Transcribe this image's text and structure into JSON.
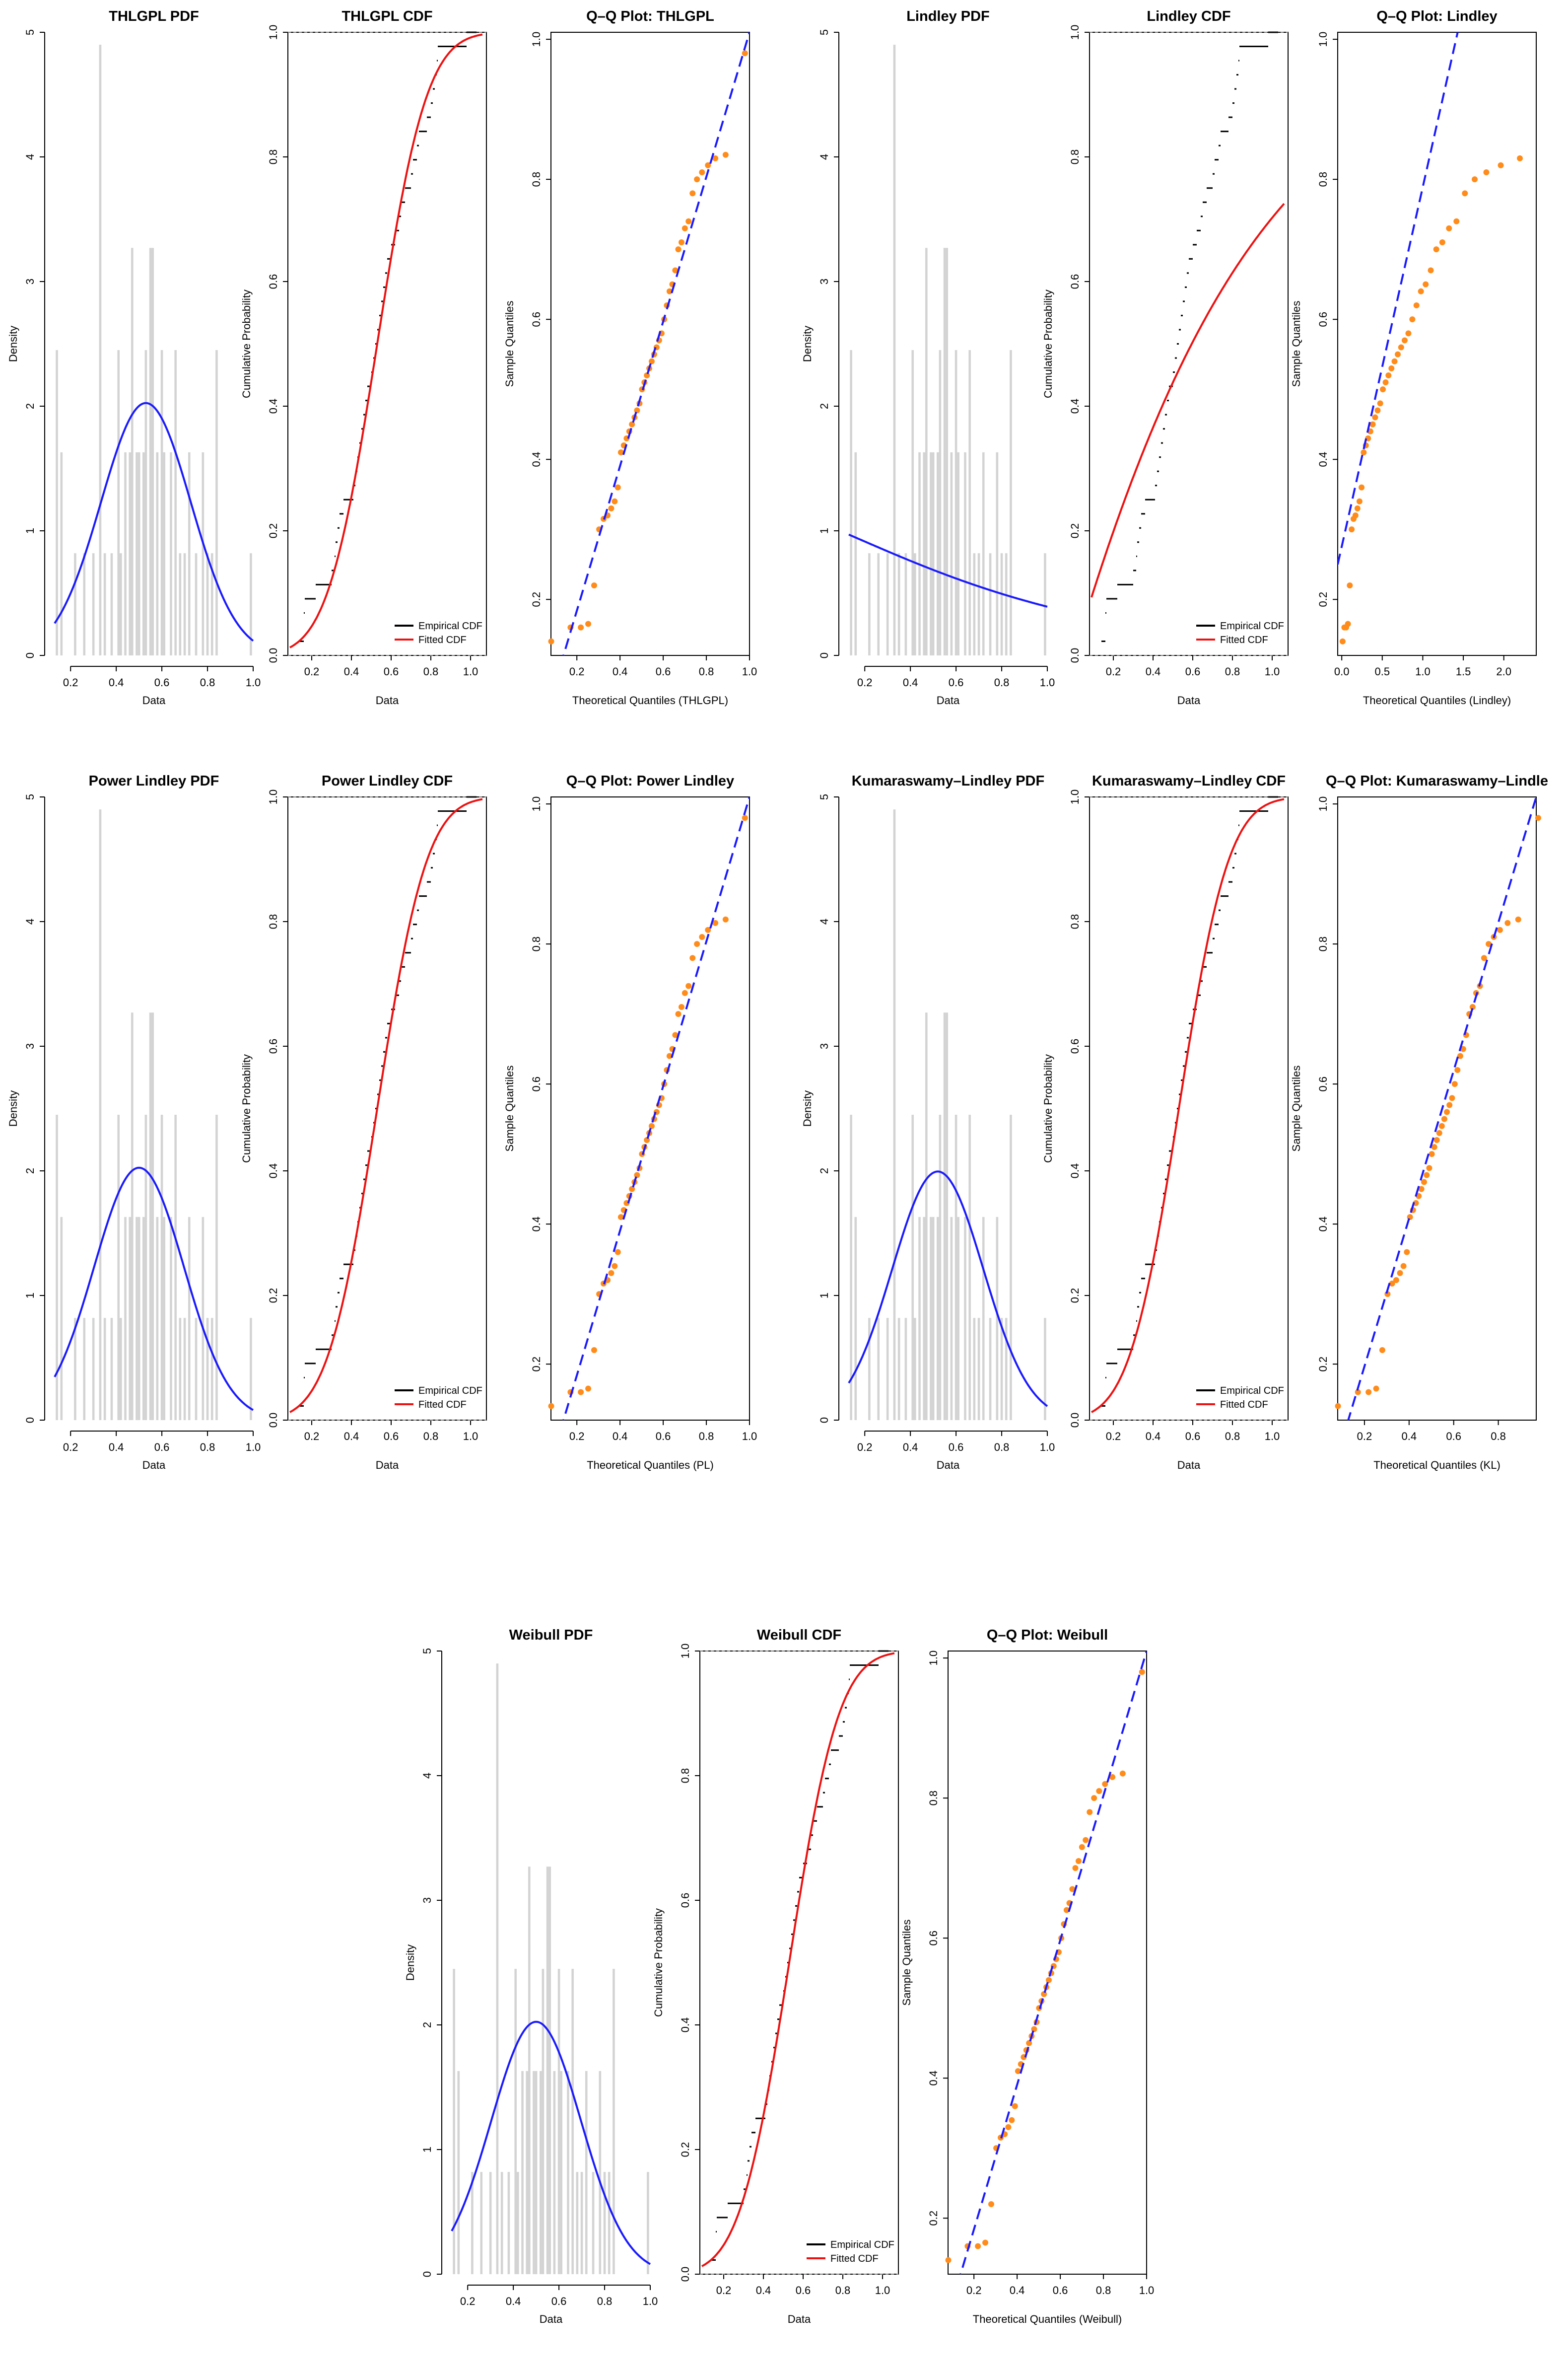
{
  "colors": {
    "pdf_curve": "#1a1aff",
    "cdf_fitted": "#ee1111",
    "qq_points": "#ff8c1a",
    "qq_line": "#1a1aff",
    "hist_bars": "#d3d3d3",
    "empirical": "#000000"
  },
  "histogram": {
    "bars": [
      {
        "x": 0.14,
        "h": 2.45
      },
      {
        "x": 0.16,
        "h": 1.63
      },
      {
        "x": 0.22,
        "h": 0.82
      },
      {
        "x": 0.26,
        "h": 0.82
      },
      {
        "x": 0.3,
        "h": 0.82
      },
      {
        "x": 0.33,
        "h": 4.9
      },
      {
        "x": 0.35,
        "h": 0.82
      },
      {
        "x": 0.38,
        "h": 0.82
      },
      {
        "x": 0.41,
        "h": 2.45
      },
      {
        "x": 0.42,
        "h": 0.82
      },
      {
        "x": 0.44,
        "h": 1.63
      },
      {
        "x": 0.46,
        "h": 1.63
      },
      {
        "x": 0.47,
        "h": 3.27
      },
      {
        "x": 0.49,
        "h": 1.63
      },
      {
        "x": 0.5,
        "h": 1.63
      },
      {
        "x": 0.52,
        "h": 1.63
      },
      {
        "x": 0.53,
        "h": 2.45
      },
      {
        "x": 0.55,
        "h": 3.27
      },
      {
        "x": 0.56,
        "h": 3.27
      },
      {
        "x": 0.58,
        "h": 1.63
      },
      {
        "x": 0.6,
        "h": 2.45
      },
      {
        "x": 0.61,
        "h": 1.63
      },
      {
        "x": 0.64,
        "h": 1.63
      },
      {
        "x": 0.66,
        "h": 2.45
      },
      {
        "x": 0.68,
        "h": 0.82
      },
      {
        "x": 0.7,
        "h": 0.82
      },
      {
        "x": 0.72,
        "h": 1.63
      },
      {
        "x": 0.75,
        "h": 0.82
      },
      {
        "x": 0.78,
        "h": 1.63
      },
      {
        "x": 0.8,
        "h": 0.82
      },
      {
        "x": 0.82,
        "h": 0.82
      },
      {
        "x": 0.84,
        "h": 2.45
      },
      {
        "x": 0.99,
        "h": 0.82
      }
    ]
  },
  "chart_data": [
    {
      "id": "thlgpl_pdf",
      "type": "histogram+line",
      "title": "THLGPL PDF",
      "xlabel": "Data",
      "ylabel": "Density",
      "xlim": [
        0.13,
        1.0
      ],
      "ylim": [
        0,
        5
      ],
      "xticks": [
        "0.2",
        "0.4",
        "0.6",
        "0.8",
        "1.0"
      ],
      "yticks": [
        "0",
        "1",
        "2",
        "3",
        "4",
        "5"
      ],
      "curve": {
        "type": "normal",
        "mean": 0.53,
        "sd": 0.197
      }
    },
    {
      "id": "thlgpl_cdf",
      "type": "cdf",
      "title": "THLGPL CDF",
      "xlabel": "Data",
      "ylabel": "Cumulative Probability",
      "xlim": [
        0.08,
        1.08
      ],
      "ylim": [
        0,
        1
      ],
      "xticks": [
        "0.2",
        "0.4",
        "0.6",
        "0.8",
        "1.0"
      ],
      "yticks": [
        "0.0",
        "0.2",
        "0.4",
        "0.6",
        "0.8",
        "1.0"
      ],
      "legend": [
        "Empirical CDF",
        "Fitted CDF"
      ],
      "fitted": {
        "type": "normal",
        "mean": 0.53,
        "sd": 0.197
      }
    },
    {
      "id": "thlgpl_qq",
      "type": "qq",
      "title": "Q–Q Plot: THLGPL",
      "xlabel": "Theoretical Quantiles (THLGPL)",
      "ylabel": "Sample Quantiles",
      "xlim": [
        0.08,
        1.0
      ],
      "ylim": [
        0.12,
        1.01
      ],
      "xticks": [
        "0.2",
        "0.4",
        "0.6",
        "0.8",
        "1.0"
      ],
      "yticks": [
        "0.2",
        "0.4",
        "0.6",
        "0.8",
        "1.0"
      ],
      "theory": "normal",
      "line": [
        [
          0.08,
          0.06
        ],
        [
          1.0,
          1.01
        ]
      ]
    },
    {
      "id": "lindley_pdf",
      "type": "histogram+line",
      "title": "Lindley PDF",
      "xlabel": "Data",
      "ylabel": "Density",
      "xlim": [
        0.13,
        1.0
      ],
      "ylim": [
        0,
        5
      ],
      "xticks": [
        "0.2",
        "0.4",
        "0.6",
        "0.8",
        "1.0"
      ],
      "yticks": [
        "0",
        "1",
        "2",
        "3",
        "4",
        "5"
      ],
      "curve": {
        "type": "lindley",
        "theta": 1.7
      }
    },
    {
      "id": "lindley_cdf",
      "type": "cdf",
      "title": "Lindley CDF",
      "xlabel": "Data",
      "ylabel": "Cumulative Probability",
      "xlim": [
        0.08,
        1.08
      ],
      "ylim": [
        0,
        1
      ],
      "xticks": [
        "0.2",
        "0.4",
        "0.6",
        "0.8",
        "1.0"
      ],
      "yticks": [
        "0.0",
        "0.2",
        "0.4",
        "0.6",
        "0.8",
        "1.0"
      ],
      "legend": [
        "Empirical CDF",
        "Fitted CDF"
      ],
      "fitted": {
        "type": "lindley",
        "theta": 1.7
      }
    },
    {
      "id": "lindley_qq",
      "type": "qq",
      "title": "Q–Q Plot: Lindley",
      "xlabel": "Theoretical Quantiles (Lindley)",
      "ylabel": "Sample Quantiles",
      "xlim": [
        -0.05,
        2.4
      ],
      "ylim": [
        0.12,
        1.01
      ],
      "xticks": [
        "0.0",
        "0.5",
        "1.0",
        "1.5",
        "2.0"
      ],
      "yticks": [
        "0.2",
        "0.4",
        "0.6",
        "0.8",
        "1.0"
      ],
      "theory": "lindley",
      "line": [
        [
          -0.05,
          0.25
        ],
        [
          1.45,
          1.02
        ]
      ]
    },
    {
      "id": "pl_pdf",
      "type": "histogram+line",
      "title": "Power Lindley PDF",
      "xlabel": "Data",
      "ylabel": "Density",
      "xlim": [
        0.13,
        1.0
      ],
      "ylim": [
        0,
        5
      ],
      "xticks": [
        "0.2",
        "0.4",
        "0.6",
        "0.8",
        "1.0"
      ],
      "yticks": [
        "0",
        "1",
        "2",
        "3",
        "4",
        "5"
      ],
      "curve": {
        "type": "normal",
        "mean": 0.5,
        "sd": 0.197
      }
    },
    {
      "id": "pl_cdf",
      "type": "cdf",
      "title": "Power Lindley CDF",
      "xlabel": "Data",
      "ylabel": "Cumulative Probability",
      "xlim": [
        0.08,
        1.08
      ],
      "ylim": [
        0,
        1
      ],
      "xticks": [
        "0.2",
        "0.4",
        "0.6",
        "0.8",
        "1.0"
      ],
      "yticks": [
        "0.0",
        "0.2",
        "0.4",
        "0.6",
        "0.8",
        "1.0"
      ],
      "legend": [
        "Empirical CDF",
        "Fitted CDF"
      ],
      "fitted": {
        "type": "normal",
        "mean": 0.53,
        "sd": 0.197
      }
    },
    {
      "id": "pl_qq",
      "type": "qq",
      "title": "Q–Q Plot: Power Lindley",
      "xlabel": "Theoretical Quantiles (PL)",
      "ylabel": "Sample Quantiles",
      "xlim": [
        0.08,
        1.0
      ],
      "ylim": [
        0.12,
        1.01
      ],
      "xticks": [
        "0.2",
        "0.4",
        "0.6",
        "0.8",
        "1.0"
      ],
      "yticks": [
        "0.2",
        "0.4",
        "0.6",
        "0.8",
        "1.0"
      ],
      "theory": "normal",
      "line": [
        [
          0.08,
          0.06
        ],
        [
          1.0,
          1.01
        ]
      ]
    },
    {
      "id": "kl_pdf",
      "type": "histogram+line",
      "title": "Kumaraswamy–Lindley PDF",
      "xlabel": "Data",
      "ylabel": "Density",
      "xlim": [
        0.13,
        1.0
      ],
      "ylim": [
        0,
        5
      ],
      "xticks": [
        "0.2",
        "0.4",
        "0.6",
        "0.8",
        "1.0"
      ],
      "yticks": [
        "0",
        "1",
        "2",
        "3",
        "4",
        "5"
      ],
      "curve": {
        "type": "normal",
        "mean": 0.52,
        "sd": 0.2
      }
    },
    {
      "id": "kl_cdf",
      "type": "cdf",
      "title": "Kumaraswamy–Lindley CDF",
      "xlabel": "Data",
      "ylabel": "Cumulative Probability",
      "xlim": [
        0.08,
        1.08
      ],
      "ylim": [
        0,
        1
      ],
      "xticks": [
        "0.2",
        "0.4",
        "0.6",
        "0.8",
        "1.0"
      ],
      "yticks": [
        "0.0",
        "0.2",
        "0.4",
        "0.6",
        "0.8",
        "1.0"
      ],
      "legend": [
        "Empirical CDF",
        "Fitted CDF"
      ],
      "fitted": {
        "type": "normal",
        "mean": 0.53,
        "sd": 0.197
      }
    },
    {
      "id": "kl_qq",
      "type": "qq",
      "title": "Q–Q Plot: Kumaraswamy–Lindle",
      "xlabel": "Theoretical Quantiles (KL)",
      "ylabel": "Sample Quantiles",
      "xlim": [
        0.08,
        0.97
      ],
      "ylim": [
        0.12,
        1.01
      ],
      "xticks": [
        "0.2",
        "0.4",
        "0.6",
        "0.8"
      ],
      "yticks": [
        "0.2",
        "0.4",
        "0.6",
        "0.8",
        "1.0"
      ],
      "theory": "normal",
      "line": [
        [
          0.08,
          0.07
        ],
        [
          0.97,
          1.01
        ]
      ]
    },
    {
      "id": "weibull_pdf",
      "type": "histogram+line",
      "title": "Weibull PDF",
      "xlabel": "Data",
      "ylabel": "Density",
      "xlim": [
        0.13,
        1.0
      ],
      "ylim": [
        0,
        5
      ],
      "xticks": [
        "0.2",
        "0.4",
        "0.6",
        "0.8",
        "1.0"
      ],
      "yticks": [
        "0",
        "1",
        "2",
        "3",
        "4",
        "5"
      ],
      "curve": {
        "type": "normal",
        "mean": 0.5,
        "sd": 0.197
      }
    },
    {
      "id": "weibull_cdf",
      "type": "cdf",
      "title": "Weibull CDF",
      "xlabel": "Data",
      "ylabel": "Cumulative Probability",
      "xlim": [
        0.08,
        1.08
      ],
      "ylim": [
        0,
        1
      ],
      "xticks": [
        "0.2",
        "0.4",
        "0.6",
        "0.8",
        "1.0"
      ],
      "yticks": [
        "0.0",
        "0.2",
        "0.4",
        "0.6",
        "0.8",
        "1.0"
      ],
      "legend": [
        "Empirical CDF",
        "Fitted CDF"
      ],
      "fitted": {
        "type": "normal",
        "mean": 0.53,
        "sd": 0.197
      }
    },
    {
      "id": "weibull_qq",
      "type": "qq",
      "title": "Q–Q Plot: Weibull",
      "xlabel": "Theoretical Quantiles (Weibull)",
      "ylabel": "Sample Quantiles",
      "xlim": [
        0.08,
        1.0
      ],
      "ylim": [
        0.12,
        1.01
      ],
      "xticks": [
        "0.2",
        "0.4",
        "0.6",
        "0.8",
        "1.0"
      ],
      "yticks": [
        "0.2",
        "0.4",
        "0.6",
        "0.8",
        "1.0"
      ],
      "theory": "normal",
      "line": [
        [
          0.08,
          0.06
        ],
        [
          1.0,
          1.01
        ]
      ]
    }
  ],
  "sample": [
    0.14,
    0.16,
    0.16,
    0.165,
    0.22,
    0.3,
    0.315,
    0.32,
    0.33,
    0.34,
    0.36,
    0.41,
    0.42,
    0.43,
    0.44,
    0.45,
    0.46,
    0.47,
    0.48,
    0.5,
    0.51,
    0.52,
    0.53,
    0.54,
    0.55,
    0.56,
    0.57,
    0.58,
    0.6,
    0.62,
    0.64,
    0.65,
    0.67,
    0.7,
    0.71,
    0.73,
    0.74,
    0.78,
    0.8,
    0.81,
    0.82,
    0.83,
    0.835,
    0.98
  ]
}
